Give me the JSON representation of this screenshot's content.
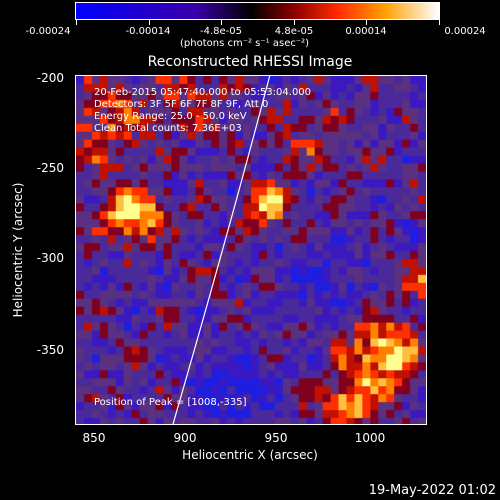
{
  "colorbar": {
    "ticks": [
      "-0.00024",
      "-0.00014",
      "-4.8e-05",
      "4.8e-05",
      "0.00014",
      "0.00024"
    ],
    "units": "(photons cm⁻² s⁻¹ asec⁻²)"
  },
  "title": "Reconstructed RHESSI Image",
  "info": {
    "time_range": "20-Feb-2015 05:47:40.000 to 05:53:04.000",
    "detectors": "Detectors: 3F 5F 6F 7F 8F 9F, Att 0",
    "energy": "Energy Range: 25.0 - 50.0 keV",
    "clean": "Clean     Total counts: 7.36E+03",
    "peak": "Position of Peak = [1008,-335]"
  },
  "axes": {
    "xlabel": "Heliocentric X (arcsec)",
    "ylabel": "Heliocentric Y (arcsec)",
    "xticks": [
      "850",
      "900",
      "950",
      "1000"
    ],
    "yticks": [
      "-200",
      "-250",
      "-300",
      "-350"
    ],
    "xrange": [
      840,
      1030
    ],
    "yrange": [
      -390,
      -195
    ]
  },
  "footer": {
    "date": "19-May-2022 01:02"
  }
}
